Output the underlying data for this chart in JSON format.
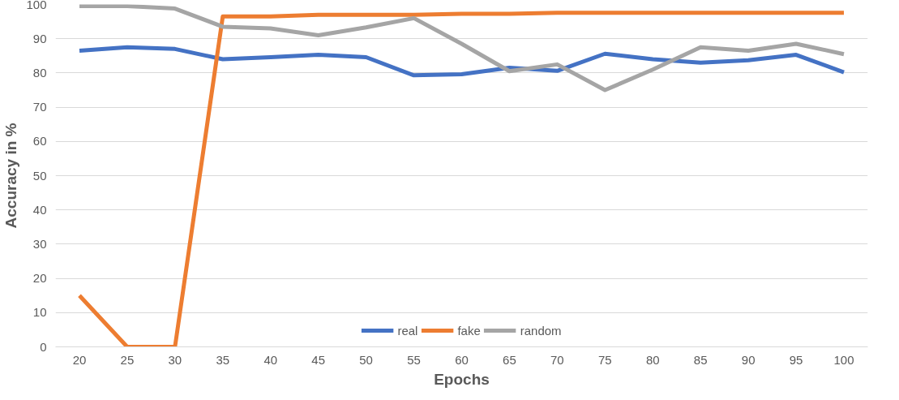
{
  "chart_data": {
    "type": "line",
    "xlabel": "Epochs",
    "ylabel": "Accuracy in %",
    "categories": [
      "20",
      "25",
      "30",
      "35",
      "40",
      "45",
      "50",
      "55",
      "60",
      "65",
      "70",
      "75",
      "80",
      "85",
      "90",
      "95",
      "100"
    ],
    "series": [
      {
        "name": "real",
        "color": "#4472c4",
        "values": [
          86.5,
          87.5,
          87,
          84,
          84.6,
          85.3,
          84.6,
          79.3,
          79.6,
          81.5,
          80.6,
          85.6,
          84,
          83,
          83.7,
          85.3,
          80.2
        ]
      },
      {
        "name": "fake",
        "color": "#ed7d31",
        "values": [
          15,
          0,
          0,
          96.5,
          96.5,
          97,
          97,
          97,
          97.3,
          97.3,
          97.6,
          97.6,
          97.6,
          97.6,
          97.6,
          97.6,
          97.6
        ]
      },
      {
        "name": "random",
        "color": "#a5a5a5",
        "values": [
          99.5,
          99.5,
          98.8,
          93.5,
          93,
          91,
          93.3,
          96,
          88.5,
          80.5,
          82.5,
          75,
          81,
          87.5,
          86.5,
          88.5,
          85.5
        ]
      }
    ],
    "ylim": [
      0,
      100
    ],
    "yticks": [
      0,
      10,
      20,
      30,
      40,
      50,
      60,
      70,
      80,
      90,
      100
    ],
    "grid": "y",
    "legend": "bottom",
    "marker": "none",
    "line_style": "solid"
  }
}
